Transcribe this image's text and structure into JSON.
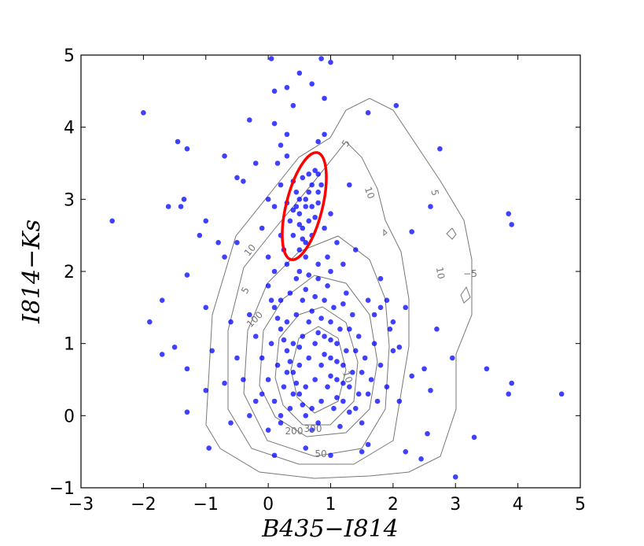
{
  "chart_data": {
    "type": "scatter",
    "xlabel": "B435−I814",
    "ylabel": "I814−Ks",
    "xlim": [
      -3,
      5
    ],
    "ylim": [
      -1,
      5
    ],
    "xticks": [
      {
        "value": -3,
        "label": "−3"
      },
      {
        "value": -2,
        "label": "−2"
      },
      {
        "value": -1,
        "label": "−1"
      },
      0,
      1,
      2,
      3,
      4,
      5
    ],
    "yticks": [
      {
        "value": -1,
        "label": "−1"
      },
      0,
      1,
      2,
      3,
      4,
      5
    ],
    "color": "#0000ff",
    "contour_labels": [
      "5",
      "10",
      "5",
      "10",
      "−5",
      "5",
      "10",
      "100",
      "200",
      "300",
      "50",
      "10"
    ],
    "x": [
      -2.5,
      -2.0,
      -1.9,
      -1.7,
      -1.7,
      -1.6,
      -1.5,
      -1.45,
      -1.4,
      -1.35,
      -1.3,
      -1.3,
      -1.3,
      -1.3,
      -1.1,
      -1.0,
      -1.0,
      -1.0,
      -0.95,
      -0.9,
      -0.8,
      -0.7,
      -0.7,
      -0.6,
      -0.5,
      -0.5,
      -0.4,
      -0.3,
      -0.2,
      0.05,
      0.1,
      0.3,
      0.4,
      0.5,
      0.7,
      0.85,
      0.9,
      1.0,
      0.1,
      0.2,
      0.3,
      1.3,
      1.6,
      2.05,
      2.3,
      2.6,
      2.75,
      3.85,
      3.9,
      3.85,
      3.9,
      4.7,
      3.5,
      3.3,
      3.0,
      2.95,
      2.7,
      2.6,
      2.5,
      2.55,
      2.45,
      2.2,
      1.6,
      1.5,
      1.8,
      2.0,
      2.1,
      2.3,
      1.0,
      0.6,
      0.1,
      -0.6,
      -0.7,
      -0.4,
      0.4,
      0.5,
      0.6,
      0.7,
      0.55,
      0.45,
      0.65,
      0.75,
      0.8,
      0.5,
      0.35,
      0.6,
      0.7,
      0.55,
      0.45,
      0.8,
      0.65,
      0.4,
      0.55,
      0.75,
      0.6,
      0.5,
      0.85,
      0.3,
      0.4,
      0.7,
      0.65,
      0.5,
      0.6,
      0.8,
      0.2,
      0.1,
      0.2,
      0.0,
      0.1,
      0.25,
      0.9,
      1.0,
      1.1,
      0.95,
      1.2,
      1.4,
      0.0,
      -0.1,
      0.15,
      0.3,
      0.8,
      0.9,
      0.0,
      0.1,
      0.2,
      0.3,
      0.4,
      0.5,
      0.6,
      0.7,
      0.8,
      0.9,
      1.0,
      1.1,
      1.2,
      1.3,
      1.4,
      1.5,
      0.05,
      0.15,
      0.25,
      0.35,
      0.45,
      0.55,
      0.65,
      0.75,
      0.85,
      0.95,
      1.05,
      1.15,
      1.25,
      1.35,
      1.45,
      1.55,
      1.65,
      1.75,
      -0.1,
      -0.2,
      -0.1,
      -0.3,
      0.0,
      0.2,
      0.3,
      0.4,
      0.5,
      0.6,
      0.7,
      0.8,
      0.9,
      1.0,
      1.1,
      1.2,
      1.3,
      1.4,
      1.5,
      1.6,
      1.7,
      1.8,
      1.9,
      1.95,
      2.0,
      0.35,
      0.45,
      0.55,
      0.65,
      0.75,
      0.85,
      0.95,
      1.05,
      1.15,
      1.25,
      1.35,
      1.45,
      0.1,
      0.2,
      0.3,
      0.4,
      0.5,
      0.6,
      0.7,
      0.8,
      0.9,
      1.0,
      1.1,
      1.2,
      0.15,
      0.25,
      0.35,
      0.45,
      0.55,
      0.65,
      0.75,
      0.85,
      1.0,
      1.1,
      1.2,
      1.3,
      0.05,
      0.5,
      0.3,
      0.8,
      1.0,
      1.6,
      1.7,
      1.8,
      1.9,
      2.1,
      2.2,
      0.2,
      0.0,
      -0.2,
      -0.5,
      -0.3
    ],
    "values": [
      2.7,
      4.2,
      1.3,
      1.6,
      0.85,
      2.9,
      0.95,
      3.8,
      2.9,
      3.0,
      3.7,
      1.95,
      0.65,
      0.05,
      2.5,
      2.7,
      0.35,
      1.5,
      -0.45,
      0.9,
      2.4,
      3.6,
      2.2,
      1.3,
      2.4,
      3.3,
      3.25,
      4.1,
      3.5,
      4.95,
      4.5,
      4.55,
      4.3,
      4.75,
      4.6,
      4.95,
      4.4,
      4.9,
      4.05,
      3.75,
      3.6,
      3.2,
      4.2,
      4.3,
      2.55,
      2.9,
      3.7,
      2.8,
      2.65,
      0.3,
      0.45,
      0.3,
      0.65,
      -0.3,
      -0.85,
      0.8,
      1.2,
      0.35,
      0.65,
      -0.25,
      -0.6,
      -0.5,
      -0.4,
      -0.5,
      1.5,
      1.3,
      0.2,
      0.55,
      -0.55,
      -0.45,
      -0.55,
      -0.1,
      0.45,
      0.5,
      2.5,
      2.8,
      3.0,
      3.2,
      2.6,
      2.9,
      2.7,
      3.4,
      3.1,
      2.3,
      2.7,
      2.4,
      2.9,
      3.3,
      3.1,
      3.35,
      3.1,
      2.85,
      2.45,
      2.75,
      2.2,
      3.0,
      3.2,
      2.95,
      3.25,
      2.5,
      3.35,
      2.65,
      2.9,
      2.95,
      3.2,
      2.9,
      2.5,
      2.2,
      2.0,
      2.3,
      2.6,
      2.8,
      2.4,
      2.2,
      2.1,
      2.3,
      3.0,
      2.6,
      3.5,
      3.9,
      3.8,
      3.9,
      1.8,
      1.5,
      1.2,
      0.9,
      0.6,
      0.3,
      0.0,
      -0.2,
      1.9,
      1.6,
      1.3,
      1.0,
      0.7,
      0.4,
      0.1,
      -0.1,
      1.0,
      0.7,
      0.4,
      0.1,
      1.9,
      1.6,
      1.3,
      1.0,
      0.7,
      0.4,
      0.1,
      -0.15,
      1.7,
      1.4,
      1.1,
      0.8,
      0.5,
      0.2,
      0.8,
      1.1,
      0.3,
      1.4,
      0.5,
      1.6,
      1.3,
      1.0,
      0.7,
      0.4,
      0.1,
      -0.1,
      1.1,
      0.8,
      0.5,
      0.2,
      1.2,
      0.9,
      0.6,
      0.3,
      1.0,
      0.7,
      0.4,
      1.2,
      0.9,
      1.7,
      1.4,
      1.1,
      0.8,
      0.5,
      0.2,
      1.8,
      1.5,
      1.2,
      0.9,
      0.6,
      0.3,
      0.2,
      -0.1,
      0.6,
      0.3,
      0.95,
      1.75,
      1.45,
      1.15,
      0.85,
      0.55,
      0.25,
      1.55,
      1.35,
      1.05,
      0.75,
      0.45,
      0.15,
      1.95,
      1.65,
      1.35,
      1.05,
      0.75,
      0.45,
      0.05,
      1.6,
      2.0,
      2.1,
      2.1,
      2.0,
      1.6,
      1.4,
      1.9,
      1.6,
      0.95,
      1.5,
      0.0,
      -0.2,
      0.2,
      0.8,
      0.0
    ]
  }
}
